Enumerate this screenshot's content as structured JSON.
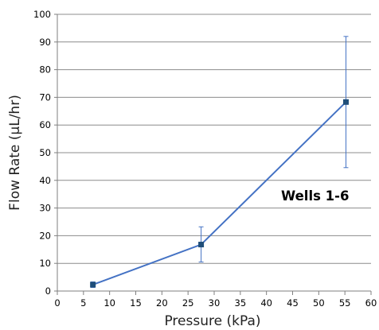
{
  "chart_data": {
    "type": "scatter",
    "title": "",
    "xlabel": "Pressure (kPa)",
    "ylabel": "Flow Rate (µL/hr)",
    "xlim": [
      0,
      60
    ],
    "ylim": [
      0,
      100
    ],
    "x_ticks": [
      "0",
      "5",
      "10",
      "15",
      "20",
      "25",
      "30",
      "35",
      "40",
      "45",
      "50",
      "55",
      "60"
    ],
    "y_ticks": [
      "0",
      "10",
      "20",
      "30",
      "40",
      "50",
      "60",
      "70",
      "80",
      "90",
      "100"
    ],
    "grid": "horizontal",
    "annotation": "Wells 1-6",
    "series": [
      {
        "x": [
          6.8,
          27.5,
          55.2
        ],
        "y": [
          2.3,
          16.8,
          68.3
        ],
        "error_low": [
          1.3,
          10.5,
          44.6
        ],
        "error_high": [
          3.3,
          23.2,
          92.0
        ],
        "color": "#4472C4",
        "marker_color": "#1F4E79"
      }
    ]
  }
}
